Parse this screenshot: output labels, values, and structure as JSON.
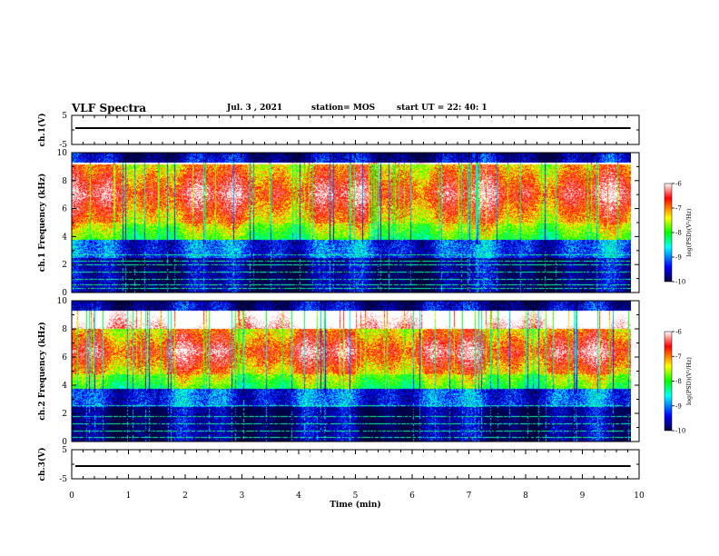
{
  "header": {
    "title": "VLF Spectra",
    "date": "Jul. 3 , 2021",
    "station": "station= MOS",
    "start": "start UT = 22: 40: 1"
  },
  "chart_data": [
    {
      "type": "line",
      "panel": "top-waveform",
      "ylabel": "ch.1(V)",
      "ylim": [
        -5,
        5
      ],
      "yticks": [
        "5",
        "-5"
      ],
      "xlim": [
        0,
        10
      ],
      "series": [
        {
          "x": [
            0,
            9.85
          ],
          "y": [
            0,
            0
          ]
        }
      ]
    },
    {
      "type": "heatmap",
      "panel": "ch1-spectrogram",
      "ylabel": "ch.1 Frequency (kHz)",
      "ylim": [
        0,
        10
      ],
      "yticks": [
        "0",
        "2",
        "4",
        "6",
        "8",
        "10"
      ],
      "xlim": [
        0,
        10
      ],
      "data_end_min": 9.85,
      "intense_band_khz": [
        5,
        9.2
      ],
      "colorbar": {
        "label": "log(PSD)(V²/Hz)",
        "ticks": [
          "-6",
          "-7",
          "-8",
          "-9",
          "-10"
        ],
        "range": [
          -10,
          -6
        ]
      }
    },
    {
      "type": "heatmap",
      "panel": "ch2-spectrogram",
      "ylabel": "ch.2 Frequency (kHz)",
      "ylim": [
        0,
        10
      ],
      "yticks": [
        "0",
        "2",
        "4",
        "6",
        "8",
        "10"
      ],
      "xlim": [
        0,
        10
      ],
      "data_end_min": 9.85,
      "intense_band_khz": [
        4.8,
        8
      ],
      "colorbar": {
        "label": "log(PSD)(V²/Hz)",
        "ticks": [
          "-6",
          "-7",
          "-8",
          "-9",
          "-10"
        ],
        "range": [
          -10,
          -6
        ]
      }
    },
    {
      "type": "line",
      "panel": "bottom-waveform",
      "ylabel": "ch.3(V)",
      "ylim": [
        -5,
        5
      ],
      "yticks": [
        "5",
        "-5"
      ],
      "xlim": [
        0,
        10
      ],
      "series": [
        {
          "x": [
            0,
            9.85
          ],
          "y": [
            0,
            0
          ]
        }
      ]
    }
  ],
  "xaxis": {
    "label": "Time (min)",
    "ticks": [
      "0",
      "1",
      "2",
      "3",
      "4",
      "5",
      "6",
      "7",
      "8",
      "9",
      "10"
    ]
  },
  "colormap": [
    "#00003c",
    "#0000ff",
    "#00ffff",
    "#00ff00",
    "#ffff00",
    "#ff0000",
    "#ffffff"
  ]
}
